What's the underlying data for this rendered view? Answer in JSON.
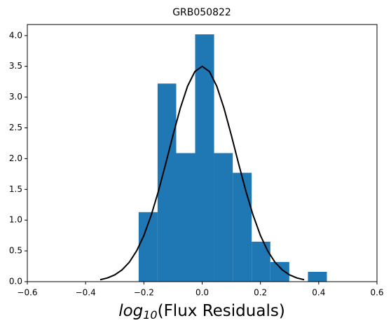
{
  "chart_data": {
    "type": "histogram",
    "title": "GRB050822",
    "xlabel": {
      "base": "log",
      "subscript": "10",
      "text": "(Flux Residuals)"
    },
    "bins": [
      -0.218,
      -0.153,
      -0.089,
      -0.024,
      0.041,
      0.105,
      0.17,
      0.234,
      0.299,
      0.363,
      0.428
    ],
    "values": [
      1.13,
      3.22,
      2.09,
      4.02,
      2.09,
      1.77,
      0.65,
      0.32,
      0,
      0.16
    ],
    "color": "#1f77b4",
    "curve": {
      "color": "#000000",
      "x": [
        -0.35,
        -0.325,
        -0.3,
        -0.275,
        -0.25,
        -0.225,
        -0.2,
        -0.175,
        -0.15,
        -0.125,
        -0.1,
        -0.075,
        -0.05,
        -0.025,
        0,
        0.025,
        0.05,
        0.075,
        0.1,
        0.125,
        0.15,
        0.175,
        0.2,
        0.225,
        0.25,
        0.275,
        0.3,
        0.325,
        0.35
      ],
      "values": [
        0.031,
        0.06,
        0.11,
        0.191,
        0.316,
        0.499,
        0.751,
        1.078,
        1.472,
        1.919,
        2.382,
        2.819,
        3.179,
        3.416,
        3.5,
        3.416,
        3.179,
        2.819,
        2.382,
        1.919,
        1.472,
        1.078,
        0.751,
        0.499,
        0.316,
        0.191,
        0.11,
        0.06,
        0.031
      ]
    },
    "xlim": [
      -0.6,
      0.6
    ],
    "xticks": [
      {
        "value": -0.6,
        "label": "−0.6"
      },
      {
        "value": -0.4,
        "label": "−0.4"
      },
      {
        "value": -0.2,
        "label": "−0.2"
      },
      {
        "value": 0,
        "label": "0.0"
      },
      0.2,
      0.4,
      0.6
    ],
    "ylim": [
      0,
      4.18
    ],
    "yticks": [
      {
        "value": 0,
        "label": "0.0"
      },
      0.5,
      {
        "value": 1,
        "label": "1.0"
      },
      1.5,
      {
        "value": 2,
        "label": "2.0"
      },
      2.5,
      {
        "value": 3,
        "label": "3.0"
      },
      3.5,
      {
        "value": 4,
        "label": "4.0"
      }
    ]
  }
}
